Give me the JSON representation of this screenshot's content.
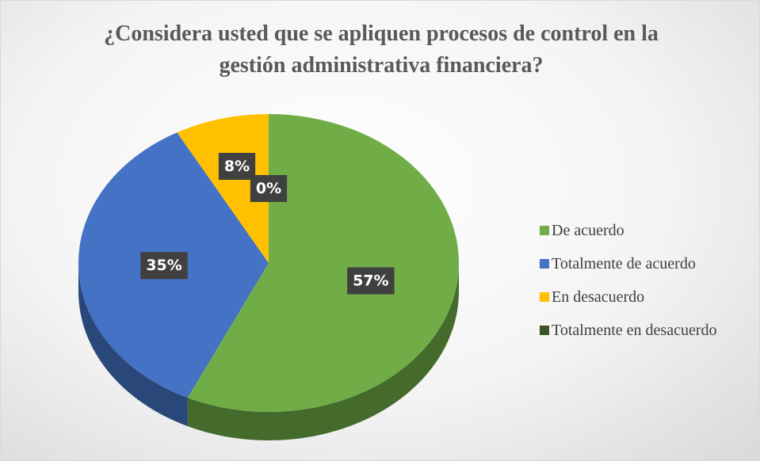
{
  "chart_data": {
    "type": "pie",
    "three_d": true,
    "title": "¿Considera usted que se apliquen procesos de control en la gestión administrativa financiera?",
    "categories": [
      "De acuerdo",
      "Totalmente de acuerdo",
      "En desacuerdo",
      "Totalmente en desacuerdo"
    ],
    "values": [
      57,
      35,
      8,
      0
    ],
    "value_labels": [
      "57%",
      "35%",
      "8%",
      "0%"
    ],
    "colors": [
      "#70ad47",
      "#4472c4",
      "#ffc000",
      "#375623"
    ],
    "legend": "right"
  }
}
